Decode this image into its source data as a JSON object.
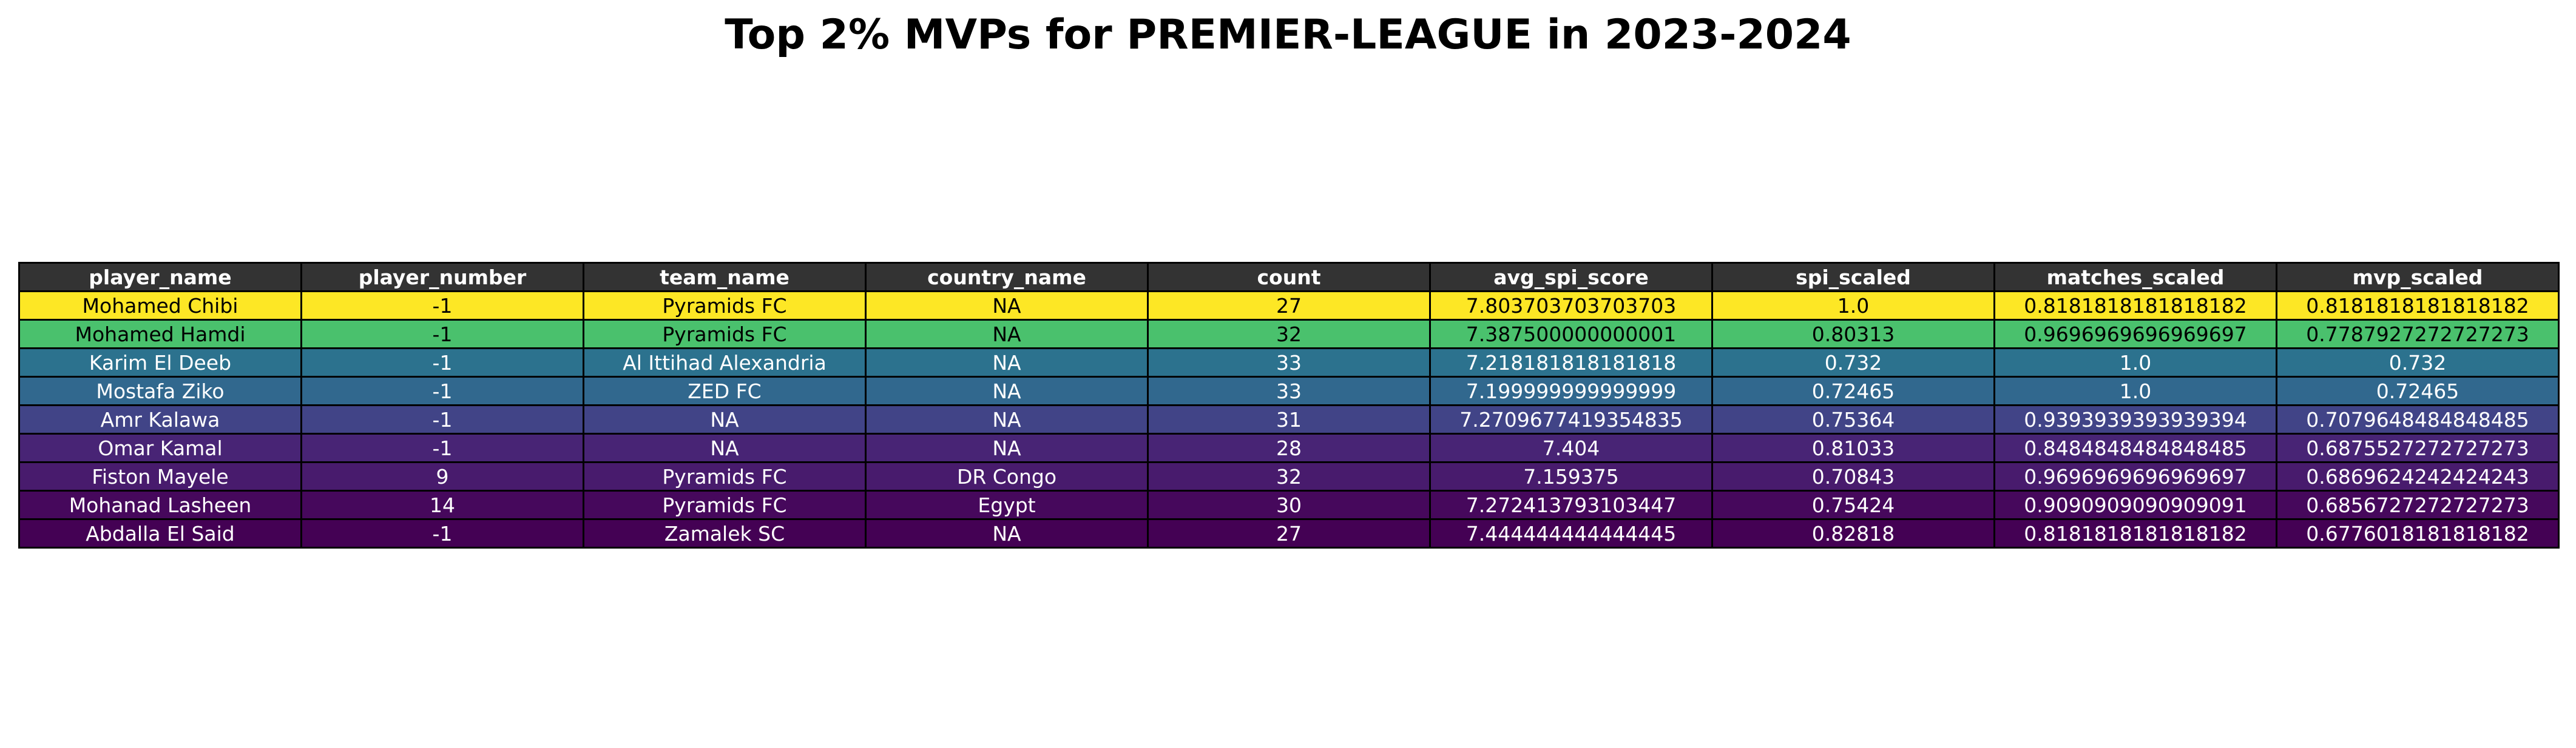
{
  "chart_data": {
    "type": "table",
    "title": "Top 2% MVPs for PREMIER-LEAGUE in 2023-2024",
    "columns": [
      "player_name",
      "player_number",
      "team_name",
      "country_name",
      "count",
      "avg_spi_score",
      "spi_scaled",
      "matches_scaled",
      "mvp_scaled"
    ],
    "header_color": "#333333",
    "rows": [
      {
        "cells": [
          "Mohamed Chibi",
          "-1",
          "Pyramids FC",
          "NA",
          "27",
          "7.803703703703703",
          "1.0",
          "0.8181818181818182",
          "0.8181818181818182"
        ],
        "color": "#fde725",
        "text_color": "#000000"
      },
      {
        "cells": [
          "Mohamed Hamdi",
          "-1",
          "Pyramids FC",
          "NA",
          "32",
          "7.387500000000001",
          "0.80313",
          "0.9696969696969697",
          "0.7787927272727273"
        ],
        "color": "#4ac16d",
        "text_color": "#000000"
      },
      {
        "cells": [
          "Karim El Deeb",
          "-1",
          "Al Ittihad Alexandria",
          "NA",
          "33",
          "7.218181818181818",
          "0.732",
          "1.0",
          "0.732"
        ],
        "color": "#2c728e",
        "text_color": "#ffffff"
      },
      {
        "cells": [
          "Mostafa Ziko",
          "-1",
          "ZED FC",
          "NA",
          "33",
          "7.199999999999999",
          "0.72465",
          "1.0",
          "0.72465"
        ],
        "color": "#31688e",
        "text_color": "#ffffff"
      },
      {
        "cells": [
          "Amr Kalawa",
          "-1",
          "NA",
          "NA",
          "31",
          "7.2709677419354835",
          "0.75364",
          "0.9393939393939394",
          "0.7079648484848485"
        ],
        "color": "#414487",
        "text_color": "#ffffff"
      },
      {
        "cells": [
          "Omar Kamal",
          "-1",
          "NA",
          "NA",
          "28",
          "7.404",
          "0.81033",
          "0.8484848484848485",
          "0.6875527272727273"
        ],
        "color": "#482475",
        "text_color": "#ffffff"
      },
      {
        "cells": [
          "Fiston Mayele",
          "9",
          "Pyramids FC",
          "DR Congo",
          "32",
          "7.159375",
          "0.70843",
          "0.9696969696969697",
          "0.6869624242424243"
        ],
        "color": "#481b6d",
        "text_color": "#ffffff"
      },
      {
        "cells": [
          "Mohanad Lasheen",
          "14",
          "Pyramids FC",
          "Egypt",
          "30",
          "7.272413793103447",
          "0.75424",
          "0.9090909090909091",
          "0.6856727272727273"
        ],
        "color": "#46085c",
        "text_color": "#ffffff"
      },
      {
        "cells": [
          "Abdalla El Said",
          "-1",
          "Zamalek SC",
          "NA",
          "27",
          "7.444444444444445",
          "0.82818",
          "0.8181818181818182",
          "0.6776018181818182"
        ],
        "color": "#440154",
        "text_color": "#ffffff"
      }
    ]
  }
}
